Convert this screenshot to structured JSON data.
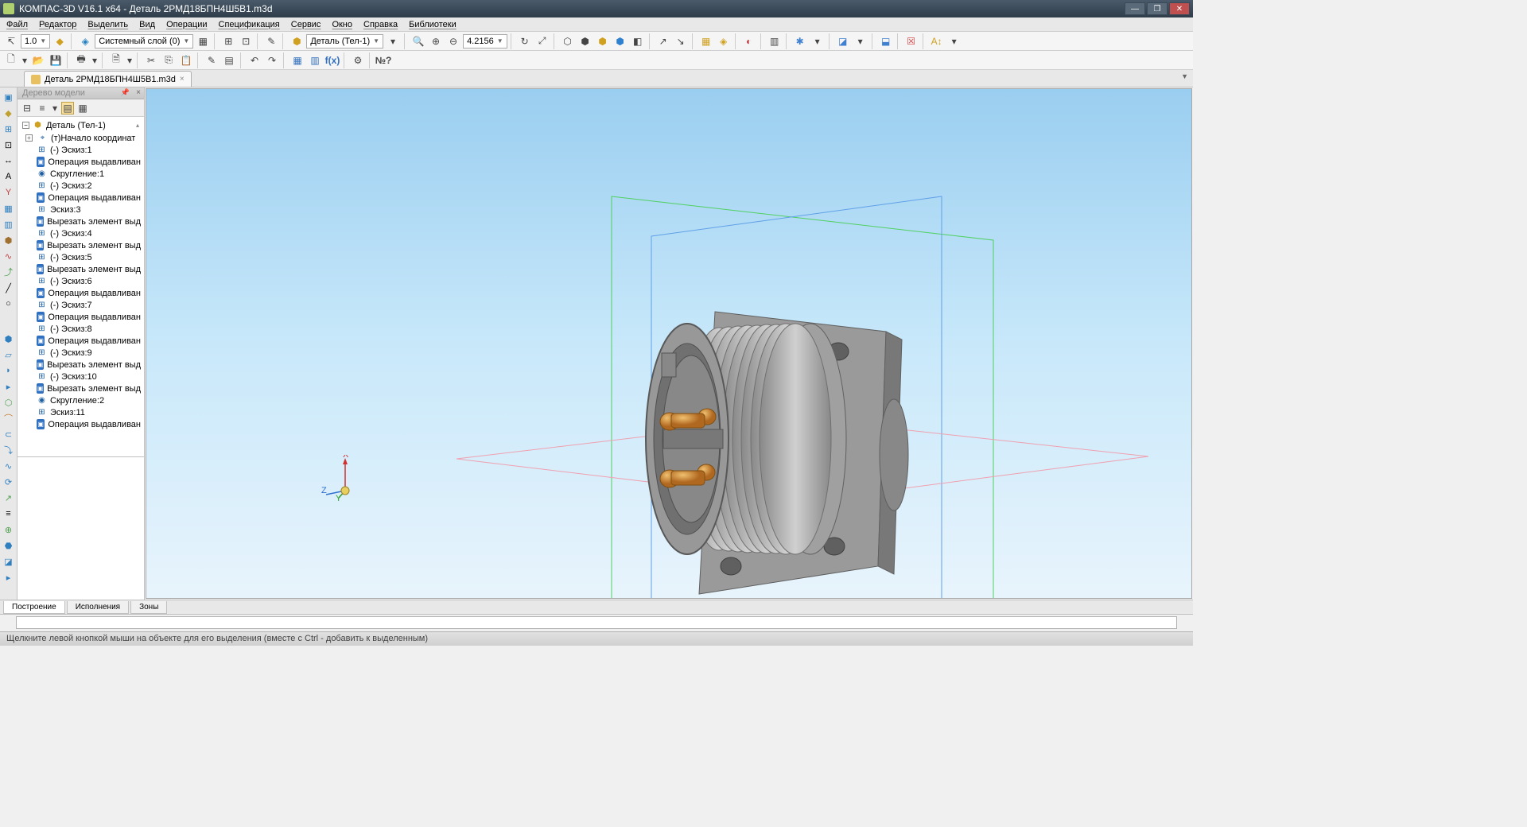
{
  "title": "КОМПАС-3D V16.1 x64 - Деталь 2РМД18БПН4Ш5В1.m3d",
  "menu": [
    "Файл",
    "Редактор",
    "Выделить",
    "Вид",
    "Операции",
    "Спецификация",
    "Сервис",
    "Окно",
    "Справка",
    "Библиотеки"
  ],
  "tb1": {
    "scale": "1.0",
    "layer": "Системный слой (0)",
    "part": "Деталь (Тел-1)"
  },
  "tb_zoom": "4.2156",
  "doc_tab": "Деталь 2РМД18БПН4Ш5В1.m3d",
  "panel_title": "Дерево модели",
  "tree_root": "Деталь (Тел-1)",
  "tree": [
    {
      "icon": "coord",
      "label": "(т)Начало координат",
      "exp": "+"
    },
    {
      "icon": "sketch",
      "label": "(-) Эскиз:1"
    },
    {
      "icon": "bop",
      "label": "Операция выдавливан"
    },
    {
      "icon": "op",
      "label": "Скругление:1"
    },
    {
      "icon": "sketch",
      "label": "(-) Эскиз:2"
    },
    {
      "icon": "bop",
      "label": "Операция выдавливан"
    },
    {
      "icon": "sketch",
      "label": "Эскиз:3"
    },
    {
      "icon": "bop",
      "label": "Вырезать элемент выд"
    },
    {
      "icon": "sketch",
      "label": "(-) Эскиз:4"
    },
    {
      "icon": "bop",
      "label": "Вырезать элемент выд"
    },
    {
      "icon": "sketch",
      "label": "(-) Эскиз:5"
    },
    {
      "icon": "bop",
      "label": "Вырезать элемент выд"
    },
    {
      "icon": "sketch",
      "label": "(-) Эскиз:6"
    },
    {
      "icon": "bop",
      "label": "Операция выдавливан"
    },
    {
      "icon": "sketch",
      "label": "(-) Эскиз:7"
    },
    {
      "icon": "bop",
      "label": "Операция выдавливан"
    },
    {
      "icon": "sketch",
      "label": "(-) Эскиз:8"
    },
    {
      "icon": "bop",
      "label": "Операция выдавливан"
    },
    {
      "icon": "sketch",
      "label": "(-) Эскиз:9"
    },
    {
      "icon": "bop",
      "label": "Вырезать элемент выд"
    },
    {
      "icon": "sketch",
      "label": "(-) Эскиз:10"
    },
    {
      "icon": "bop",
      "label": "Вырезать элемент выд"
    },
    {
      "icon": "op",
      "label": "Скругление:2"
    },
    {
      "icon": "sketch",
      "label": "Эскиз:11"
    },
    {
      "icon": "bop",
      "label": "Операция выдавливан"
    }
  ],
  "bottom_tabs": [
    "Построение",
    "Исполнения",
    "Зоны"
  ],
  "status": "Щелкните левой кнопкой мыши на объекте для его выделения (вместе с Ctrl - добавить к выделенным)",
  "axis_labels": {
    "x": "X",
    "y": "Y",
    "z": "Z"
  },
  "colors": {
    "plane_green": "#50d060",
    "plane_blue": "#60a0e8",
    "plane_pink": "#f0a0b0",
    "part_body": "#a8a8a8",
    "part_pin": "#d89040"
  }
}
